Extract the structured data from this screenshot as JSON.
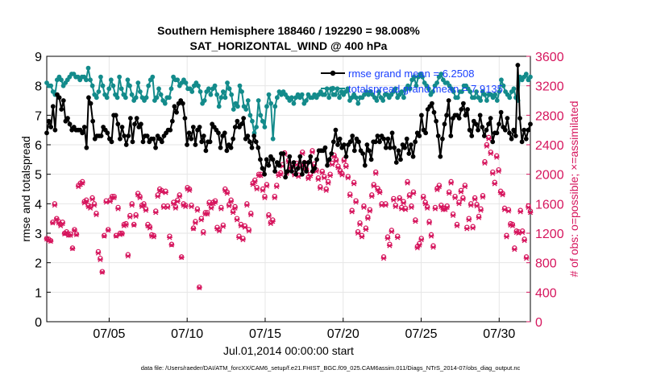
{
  "chart_data": {
    "type": "line",
    "title": [
      "Southern Hemisphere 188460 / 192290 = 98.008%",
      "SAT_HORIZONTAL_WIND @ 400 hPa"
    ],
    "xlabel": "Jul.01,2014 00:00:00 start",
    "ylabel_left": "rmse and totalspread",
    "ylabel_right": "# of obs: o=possible; ×=assimilated",
    "x_tick_labels": [
      "07/05",
      "07/10",
      "07/15",
      "07/20",
      "07/25",
      "07/30"
    ],
    "x_tick_days": [
      5,
      10,
      15,
      20,
      25,
      30
    ],
    "xlim": [
      1,
      32
    ],
    "ylim_left": [
      0,
      9
    ],
    "ylim_right": [
      0,
      3600
    ],
    "left_ticks": [
      0,
      1,
      2,
      3,
      4,
      5,
      6,
      7,
      8,
      9
    ],
    "right_ticks": [
      0,
      400,
      800,
      1200,
      1600,
      2000,
      2400,
      2800,
      3200,
      3600
    ],
    "grid": true,
    "legend_position": "top-right",
    "footer": "data file: /Users/raeder/DAI/ATM_forcXX/CAM6_setup/f.e21.FHIST_BGC.f09_025.CAM6assim.011/Diags_NTrS_2014-07/obs_diag_output.nc",
    "colors": {
      "rmse": "#000000",
      "spread": "#138b8b",
      "obs": "#d6155d",
      "legend_text": "#1a40ff"
    },
    "series": [
      {
        "name": "rmse grand mean = 6.2508",
        "axis": "left",
        "marker": "dot",
        "values": [
          6.4,
          6.8,
          6.6,
          7.3,
          6.5,
          7.7,
          7.6,
          7.2,
          7.5,
          6.8,
          6.9,
          6.7,
          6.5,
          6.6,
          6.5,
          6.5,
          6.5,
          6.4,
          6.6,
          5.9,
          7.6,
          7.4,
          6.8,
          6.2,
          6.3,
          6.3,
          6.3,
          6.6,
          6.5,
          6.4,
          6.2,
          6.1,
          7.0,
          7.0,
          6.7,
          6.2,
          6.6,
          6.3,
          6.0,
          6.3,
          6.9,
          6.1,
          6.7,
          6.9,
          6.6,
          6.7,
          6.1,
          6.3,
          6.3,
          6.1,
          6.2,
          6.2,
          5.9,
          6.3,
          6.2,
          6.1,
          6.3,
          6.4,
          6.5,
          6.5,
          6.8,
          7.3,
          7.1,
          7.4,
          7.5,
          7.4,
          6.9,
          6.0,
          6.4,
          6.2,
          6.6,
          6.0,
          6.5,
          6.6,
          6.1,
          6.3,
          5.8,
          6.1,
          6.1,
          6.7,
          6.6,
          6.5,
          6.4,
          5.9,
          6.3,
          6.4,
          5.8,
          6.0,
          5.9,
          6.2,
          6.6,
          6.8,
          6.6,
          6.7,
          6.9,
          6.2,
          6.3,
          6.1,
          5.9,
          6.3,
          6.1,
          5.9,
          5.5,
          5.2,
          5.0,
          5.5,
          5.3,
          5.6,
          5.5,
          5.1,
          5.4,
          5.3,
          5.7,
          5.7,
          4.9,
          5.1,
          5.6,
          5.1,
          5.4,
          5.0,
          5.2,
          5.6,
          5.0,
          5.4,
          5.1,
          5.4,
          5.6,
          5.1,
          5.2,
          5.5,
          5.8,
          5.8,
          5.8,
          5.9,
          5.3,
          5.5,
          5.7,
          6.1,
          6.5,
          6.0,
          6.2,
          5.9,
          6.0,
          5.6,
          6.0,
          6.1,
          6.3,
          5.8,
          6.2,
          6.1,
          5.8,
          5.7,
          5.3,
          6.0,
          5.8,
          5.5,
          6.1,
          6.1,
          6.3,
          6.1,
          6.3,
          6.2,
          5.9,
          6.2,
          5.9,
          6.4,
          5.9,
          5.4,
          5.8,
          5.5,
          6.0,
          5.9,
          6.2,
          5.7,
          6.0,
          5.6,
          6.1,
          6.4,
          6.3,
          7.0,
          6.5,
          6.4,
          7.2,
          7.3,
          7.4,
          7.1,
          6.8,
          6.3,
          5.6,
          6.2,
          6.7,
          7.0,
          7.5,
          6.3,
          6.9,
          7.0,
          7.0,
          6.9,
          7.2,
          7.4,
          7.0,
          7.2,
          6.5,
          6.3,
          6.8,
          6.7,
          6.5,
          7.0,
          6.6,
          6.3,
          6.5,
          6.7,
          6.9,
          6.1,
          6.4,
          6.4,
          6.7,
          7.1,
          6.6,
          6.5,
          6.9,
          6.4,
          6.2,
          6.5,
          6.3,
          8.7,
          6.9,
          6.1,
          6.5,
          6.2,
          6.5,
          6.7
        ]
      },
      {
        "name": "totalspread grand mean = 7.9135",
        "axis": "left",
        "marker": "dot",
        "values": [
          8.1,
          8.0,
          8.0,
          7.8,
          7.7,
          8.2,
          8.3,
          8.2,
          8.0,
          8.1,
          8.2,
          8.3,
          8.4,
          8.4,
          8.3,
          8.3,
          8.2,
          8.3,
          8.3,
          8.2,
          8.6,
          8.2,
          8.0,
          7.7,
          7.6,
          7.8,
          8.3,
          8.0,
          7.7,
          7.6,
          7.9,
          8.2,
          8.0,
          7.7,
          7.6,
          8.3,
          7.9,
          7.7,
          7.6,
          8.2,
          8.0,
          7.7,
          7.5,
          7.6,
          8.1,
          7.8,
          7.6,
          7.5,
          7.6,
          8.0,
          8.2,
          8.3,
          7.5,
          7.6,
          7.9,
          7.7,
          7.5,
          7.4,
          7.6,
          7.6,
          7.9,
          8.3,
          8.2,
          8.2,
          8.0,
          8.1,
          8.2,
          8.1,
          7.9,
          7.9,
          7.8,
          8.0,
          8.1,
          8.0,
          7.8,
          7.4,
          7.5,
          7.8,
          7.9,
          7.7,
          7.9,
          8.0,
          7.7,
          7.3,
          7.6,
          7.8,
          7.6,
          8.1,
          7.9,
          7.7,
          7.2,
          7.4,
          7.3,
          8.0,
          7.8,
          7.3,
          7.2,
          7.5,
          7.0,
          6.8,
          6.4,
          6.6,
          7.5,
          7.0,
          6.8,
          6.6,
          7.3,
          7.7,
          7.4,
          6.2,
          7.3,
          7.6,
          7.8,
          7.7,
          7.8,
          7.7,
          7.6,
          7.5,
          7.6,
          7.4,
          7.6,
          7.7,
          7.6,
          7.7,
          7.4,
          7.5,
          7.7,
          7.6,
          7.6,
          7.7,
          7.6,
          7.7,
          7.8,
          7.7,
          7.7,
          7.9,
          7.6,
          7.9,
          7.7,
          7.7,
          7.9,
          7.6,
          7.8,
          7.7,
          7.8,
          7.9,
          7.5,
          7.6,
          7.7,
          7.6,
          7.4,
          7.6,
          7.6,
          7.7,
          7.8,
          7.7,
          7.8,
          7.7,
          7.6,
          7.5,
          7.8,
          7.6,
          7.5,
          7.7,
          7.7,
          7.6,
          7.7,
          7.8,
          7.9,
          7.6,
          7.7,
          7.8,
          7.6,
          7.9,
          8.0,
          7.9,
          8.2,
          8.3,
          8.0,
          8.3,
          8.4,
          8.3,
          8.1,
          8.0,
          7.9,
          7.7,
          7.8,
          8.0,
          8.1,
          8.3,
          8.4,
          8.2,
          8.1,
          8.1,
          8.0,
          7.9,
          7.8,
          7.6,
          7.6,
          7.8,
          7.8,
          8.0,
          8.0,
          7.9,
          7.8,
          7.6,
          7.6,
          7.8,
          7.6,
          7.5,
          7.8,
          7.7,
          7.5,
          7.7,
          7.7,
          7.6,
          7.7,
          7.5,
          7.8,
          8.2,
          8.0,
          7.8,
          7.7,
          7.6,
          7.8,
          7.9,
          7.6,
          7.5,
          8.3,
          8.2,
          8.3,
          8.4,
          8.2,
          8.3
        ]
      },
      {
        "name": "obs possible",
        "axis": "right",
        "marker": "circle",
        "values": [
          1130,
          1120,
          1100,
          1350,
          1600,
          1400,
          1360,
          1320,
          1350,
          1200,
          1220,
          1180,
          1190,
          1000,
          1250,
          1190,
          1850,
          1880,
          1900,
          1630,
          1650,
          1580,
          1560,
          1680,
          1600,
          1470,
          950,
          860,
          680,
          1170,
          1640,
          1250,
          1650,
          1700,
          1700,
          1170,
          1550,
          1200,
          1200,
          1320,
          1330,
          910,
          1440,
          1600,
          1320,
          1450,
          1740,
          1700,
          1580,
          1600,
          1530,
          1320,
          1290,
          1180,
          1170,
          1500,
          1720,
          1800,
          1780,
          1570,
          1770,
          1570,
          1160,
          1050,
          1620,
          1560,
          1650,
          1720,
          880,
          1600,
          1580,
          1820,
          1800,
          1580,
          1270,
          1360,
          1530,
          470,
          1400,
          1220,
          1480,
          1480,
          1620,
          1560,
          1620,
          1640,
          1280,
          1250,
          1550,
          1310,
          1800,
          1760,
          1590,
          1650,
          1500,
          1560,
          1400,
          1160,
          1320,
          1130,
          1300,
          1600,
          1250,
          1470,
          1880,
          1920,
          1820,
          2000,
          2000,
          1800,
          1700,
          1860,
          1450,
          1350,
          1380,
          1700,
          1850,
          2000,
          2020,
          2130,
          2290,
          2030,
          2190,
          2100,
          2120,
          2010,
          2150,
          1990,
          2120,
          2300,
          2160,
          2070,
          1960,
          2000,
          2320,
          2140,
          2060,
          1950,
          1830,
          2040,
          1970,
          1800,
          1900,
          2000,
          2150,
          2260,
          2200,
          2110,
          2050,
          2010,
          2200,
          2120,
          1970,
          1730,
          1510,
          1890,
          1640,
          1220,
          1340,
          1170,
          1570,
          1270,
          1420,
          1520,
          1720,
          1860,
          2030,
          1810,
          1770,
          1600,
          880,
          1600,
          1150,
          1050,
          1240,
          1670,
          1580,
          1160,
          1680,
          1550,
          1630,
          1540,
          1900,
          1720,
          1570,
          1760,
          1380,
          1020,
          1060,
          1130,
          1700,
          1620,
          1560,
          1360,
          1180,
          1030,
          1550,
          1810,
          1850,
          1580,
          1540,
          1540,
          1570,
          1760,
          1900,
          1460,
          1700,
          1320,
          1620,
          1780,
          1680,
          1850,
          1280,
          1400,
          1600,
          1290,
          1680,
          1590,
          1430,
          1530,
          1710,
          2170,
          2400,
          2500,
          2300,
          2030,
          1890,
          2250,
          2060,
          1770,
          1740,
          1540,
          1170,
          1520,
          1330,
          1320,
          1000,
          1230,
          1220,
          1510,
          1230,
          1120,
          880,
          1570,
          1500
        ]
      },
      {
        "name": "obs assimilated",
        "axis": "right",
        "marker": "x",
        "values": [
          1120,
          1100,
          1090,
          1340,
          1580,
          1390,
          1340,
          1300,
          1330,
          1190,
          1210,
          1170,
          1170,
          990,
          1240,
          1180,
          1830,
          1860,
          1880,
          1610,
          1630,
          1560,
          1540,
          1660,
          1580,
          1450,
          930,
          840,
          670,
          1160,
          1620,
          1240,
          1630,
          1680,
          1680,
          1160,
          1530,
          1180,
          1190,
          1300,
          1310,
          890,
          1420,
          1580,
          1310,
          1430,
          1720,
          1680,
          1560,
          1580,
          1510,
          1300,
          1270,
          1160,
          1150,
          1480,
          1700,
          1780,
          1760,
          1550,
          1750,
          1550,
          1140,
          1040,
          1600,
          1540,
          1630,
          1700,
          870,
          1580,
          1560,
          1800,
          1780,
          1560,
          1260,
          1340,
          1510,
          460,
          1380,
          1200,
          1460,
          1460,
          1600,
          1540,
          1600,
          1620,
          1260,
          1230,
          1530,
          1290,
          1780,
          1740,
          1570,
          1630,
          1480,
          1540,
          1380,
          1140,
          1300,
          1110,
          1280,
          1580,
          1230,
          1450,
          1860,
          1900,
          1800,
          1980,
          1980,
          1780,
          1680,
          1840,
          1430,
          1330,
          1360,
          1680,
          1830,
          1980,
          2000,
          2110,
          2270,
          2010,
          2170,
          2080,
          2100,
          1990,
          2130,
          1970,
          2100,
          2280,
          2140,
          2050,
          1940,
          1980,
          2300,
          2120,
          2040,
          1930,
          1810,
          2020,
          1950,
          1780,
          1880,
          1980,
          2130,
          2240,
          2180,
          2090,
          2030,
          1990,
          2180,
          2100,
          1950,
          1710,
          1490,
          1870,
          1620,
          1200,
          1320,
          1150,
          1550,
          1250,
          1400,
          1500,
          1700,
          1840,
          2010,
          1790,
          1750,
          1580,
          860,
          1580,
          1130,
          1030,
          1220,
          1650,
          1560,
          1140,
          1660,
          1530,
          1610,
          1520,
          1880,
          1700,
          1550,
          1740,
          1360,
          1000,
          1040,
          1110,
          1680,
          1600,
          1540,
          1340,
          1160,
          1010,
          1530,
          1790,
          1830,
          1560,
          1520,
          1520,
          1550,
          1740,
          1880,
          1440,
          1680,
          1300,
          1600,
          1760,
          1660,
          1830,
          1260,
          1380,
          1580,
          1270,
          1660,
          1570,
          1410,
          1510,
          1690,
          2150,
          2380,
          2480,
          2280,
          2010,
          1870,
          2230,
          2040,
          1750,
          1720,
          1520,
          1150,
          1500,
          1310,
          1300,
          980,
          1210,
          1200,
          1490,
          1210,
          1100,
          860,
          1550,
          1480
        ]
      }
    ]
  }
}
